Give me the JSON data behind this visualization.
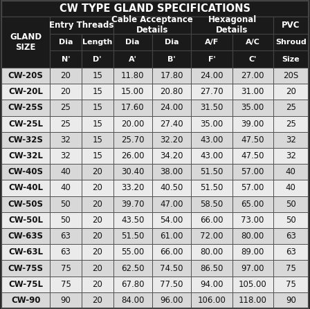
{
  "title": "CW TYPE GLAND SPECIFICATIONS",
  "data": [
    [
      "CW-20S",
      "20",
      "15",
      "11.80",
      "17.80",
      "24.00",
      "27.00",
      "20S"
    ],
    [
      "CW-20L",
      "20",
      "15",
      "15.00",
      "20.80",
      "27.70",
      "31.00",
      "20"
    ],
    [
      "CW-25S",
      "25",
      "15",
      "17.60",
      "24.00",
      "31.50",
      "35.00",
      "25"
    ],
    [
      "CW-25L",
      "25",
      "15",
      "20.00",
      "27.40",
      "35.00",
      "39.00",
      "25"
    ],
    [
      "CW-32S",
      "32",
      "15",
      "25.70",
      "32.20",
      "43.00",
      "47.50",
      "32"
    ],
    [
      "CW-32L",
      "32",
      "15",
      "26.00",
      "34.20",
      "43.00",
      "47.50",
      "32"
    ],
    [
      "CW-40S",
      "40",
      "20",
      "30.40",
      "38.00",
      "51.50",
      "57.00",
      "40"
    ],
    [
      "CW-40L",
      "40",
      "20",
      "33.20",
      "40.50",
      "51.50",
      "57.00",
      "40"
    ],
    [
      "CW-50S",
      "50",
      "20",
      "39.70",
      "47.00",
      "58.50",
      "65.00",
      "50"
    ],
    [
      "CW-50L",
      "50",
      "20",
      "43.50",
      "54.00",
      "66.00",
      "73.00",
      "50"
    ],
    [
      "CW-63S",
      "63",
      "20",
      "51.50",
      "61.00",
      "72.00",
      "80.00",
      "63"
    ],
    [
      "CW-63L",
      "63",
      "20",
      "55.00",
      "66.00",
      "80.00",
      "89.00",
      "63"
    ],
    [
      "CW-75S",
      "75",
      "20",
      "62.50",
      "74.50",
      "86.50",
      "97.00",
      "75"
    ],
    [
      "CW-75L",
      "75",
      "20",
      "67.80",
      "77.50",
      "94.00",
      "105.00",
      "75"
    ],
    [
      "CW-90",
      "90",
      "20",
      "84.00",
      "96.00",
      "106.00",
      "118.00",
      "90"
    ]
  ],
  "bg_dark": "#1a1a1a",
  "bg_header": "#2d2d2d",
  "bg_row_even": "#d8d8d8",
  "bg_row_odd": "#ebebeb",
  "text_white": "#ffffff",
  "text_dark": "#111111",
  "border_color": "#444444",
  "title_bg": "#1a1a1a",
  "col_widths": [
    1.3,
    0.85,
    0.85,
    1.05,
    1.05,
    1.1,
    1.1,
    0.95
  ],
  "title_fontsize": 10.5,
  "header1_fontsize": 8.5,
  "header2_fontsize": 8.0,
  "data_fontsize": 8.5
}
